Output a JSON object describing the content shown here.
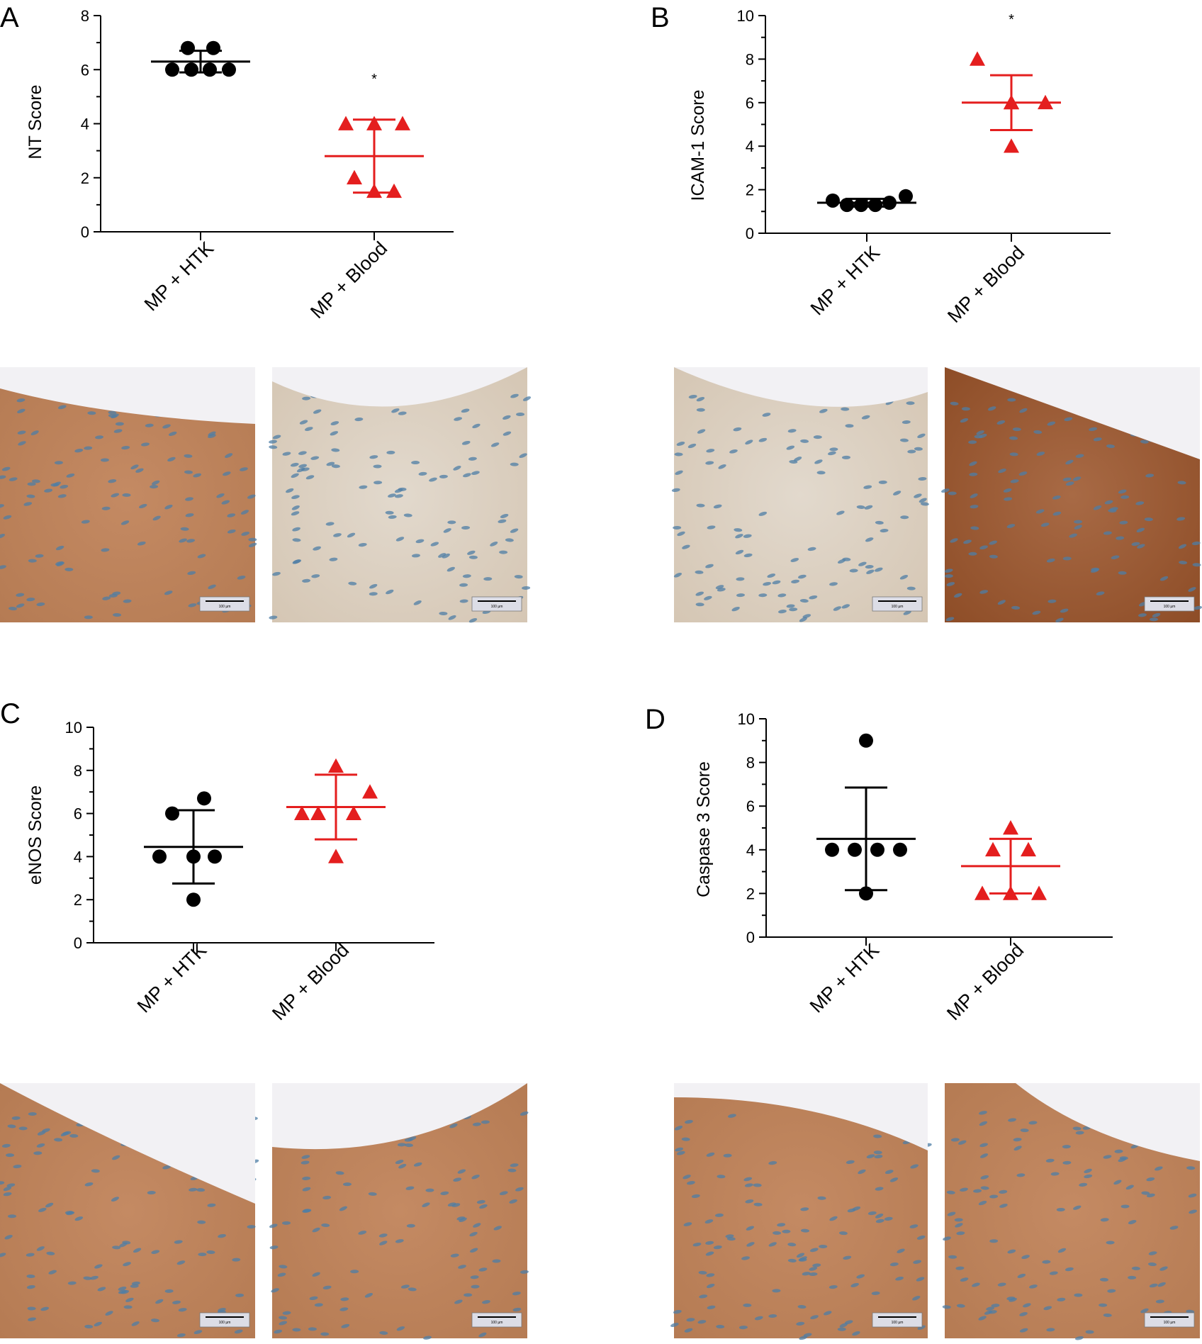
{
  "figure": {
    "scale_bar_label": "100 µm",
    "colors": {
      "htk": "#000000",
      "blood": "#e41e1e"
    },
    "micrograph_description": "immunohistochemistry micrographs of vessel wall, brown DAB staining with blue hematoxylin nuclei"
  },
  "chart_data": [
    {
      "type": "scatter",
      "panel": "A",
      "ylabel": "NT Score",
      "categories": [
        "MP + HTK",
        "MP + Blood"
      ],
      "ylim": [
        0,
        8
      ],
      "yticks": [
        0,
        2,
        4,
        6,
        8
      ],
      "series": [
        {
          "name": "MP + HTK",
          "marker": "circle",
          "color": "#000000",
          "points": [
            6.8,
            6.8,
            6.0,
            6.0,
            6.0,
            6.0
          ],
          "mean": 6.3,
          "sd": 0.4
        },
        {
          "name": "MP + Blood",
          "marker": "triangle",
          "color": "#e41e1e",
          "points": [
            4.0,
            4.0,
            4.0,
            2.0,
            1.5,
            1.5
          ],
          "mean": 2.8,
          "sd": 1.35
        }
      ],
      "significance": {
        "category": "MP + Blood",
        "text": "*",
        "y": 5.8
      }
    },
    {
      "type": "scatter",
      "panel": "B",
      "ylabel": "ICAM-1 Score",
      "categories": [
        "MP + HTK",
        "MP + Blood"
      ],
      "ylim": [
        0,
        10
      ],
      "yticks": [
        0,
        2,
        4,
        6,
        8,
        10
      ],
      "series": [
        {
          "name": "MP + HTK",
          "marker": "circle",
          "color": "#000000",
          "points": [
            1.5,
            1.3,
            1.3,
            1.3,
            1.4,
            1.7
          ],
          "mean": 1.4,
          "sd": 0.18
        },
        {
          "name": "MP + Blood",
          "marker": "triangle",
          "color": "#e41e1e",
          "points": [
            8.0,
            6.0,
            6.0,
            6.0,
            6.0,
            4.0
          ],
          "mean": 6.0,
          "sd": 1.26
        }
      ],
      "significance": {
        "category": "MP + Blood",
        "text": "*",
        "y": 10.0
      }
    },
    {
      "type": "scatter",
      "panel": "C",
      "ylabel": "eNOS Score",
      "categories": [
        "MP + HTK",
        "MP + Blood"
      ],
      "ylim": [
        0,
        10
      ],
      "yticks": [
        0,
        2,
        4,
        6,
        8,
        10
      ],
      "series": [
        {
          "name": "MP + HTK",
          "marker": "circle",
          "color": "#000000",
          "points": [
            6.7,
            6.0,
            4.0,
            4.0,
            4.0,
            2.0
          ],
          "mean": 4.45,
          "sd": 1.7
        },
        {
          "name": "MP + Blood",
          "marker": "triangle",
          "color": "#e41e1e",
          "points": [
            8.2,
            6.0,
            6.0,
            6.0,
            7.0,
            4.0
          ],
          "mean": 6.3,
          "sd": 1.5
        }
      ]
    },
    {
      "type": "scatter",
      "panel": "D",
      "ylabel": "Caspase 3 Score",
      "categories": [
        "MP + HTK",
        "MP + Blood"
      ],
      "ylim": [
        0,
        10
      ],
      "yticks": [
        0,
        2,
        4,
        6,
        8,
        10
      ],
      "series": [
        {
          "name": "MP + HTK",
          "marker": "circle",
          "color": "#000000",
          "points": [
            9.0,
            4.0,
            4.0,
            4.0,
            4.0,
            2.0
          ],
          "mean": 4.5,
          "sd": 2.35
        },
        {
          "name": "MP + Blood",
          "marker": "triangle",
          "color": "#e41e1e",
          "points": [
            5.0,
            4.0,
            4.0,
            2.0,
            2.0,
            2.0
          ],
          "mean": 3.25,
          "sd": 1.25
        }
      ]
    }
  ]
}
